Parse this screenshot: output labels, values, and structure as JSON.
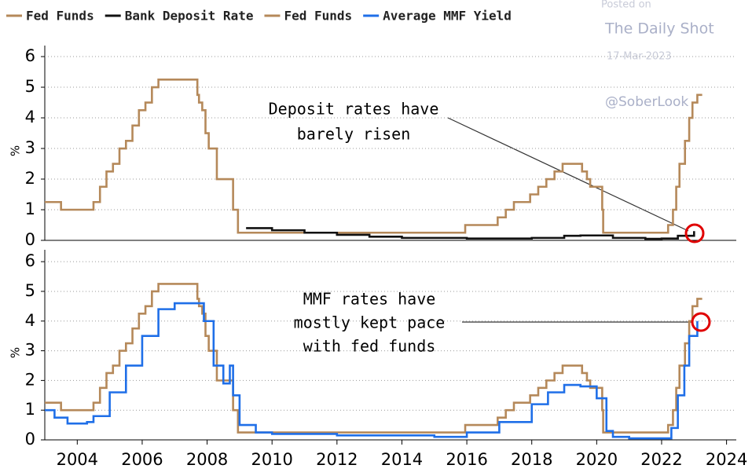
{
  "watermark": [
    "Posted on",
    "The Daily Shot",
    "17-Mar-2023",
    "@SoberLook"
  ],
  "chart_data": [
    {
      "type": "line",
      "ylabel": "%",
      "step": true,
      "annotation": [
        "Deposit rates have",
        "barely risen"
      ],
      "xlim": [
        2003,
        2024.3
      ],
      "ylim": [
        0,
        6.36
      ],
      "yticks": [
        0,
        1,
        2,
        3,
        4,
        5,
        6
      ],
      "grid": true,
      "series": [
        {
          "name": "Fed Funds",
          "color": "#b5895a",
          "x": [
            2003.0,
            2003.5,
            2004.5,
            2004.7,
            2004.9,
            2005.1,
            2005.3,
            2005.5,
            2005.7,
            2005.9,
            2006.1,
            2006.3,
            2006.5,
            2007.7,
            2007.75,
            2007.85,
            2007.95,
            2008.05,
            2008.3,
            2008.8,
            2008.95,
            2015.95,
            2016.95,
            2017.2,
            2017.45,
            2017.95,
            2018.2,
            2018.45,
            2018.7,
            2018.95,
            2019.55,
            2019.7,
            2019.8,
            2020.17,
            2020.2,
            2022.2,
            2022.35,
            2022.45,
            2022.55,
            2022.72,
            2022.85,
            2022.95,
            2023.1,
            2023.25
          ],
          "values": [
            1.25,
            1.0,
            1.25,
            1.75,
            2.25,
            2.5,
            3.0,
            3.25,
            3.75,
            4.25,
            4.5,
            5.0,
            5.25,
            4.75,
            4.5,
            4.25,
            3.5,
            3.0,
            2.0,
            1.0,
            0.25,
            0.5,
            0.75,
            1.0,
            1.25,
            1.5,
            1.75,
            2.0,
            2.25,
            2.5,
            2.25,
            2.0,
            1.75,
            1.0,
            0.25,
            0.5,
            1.0,
            1.75,
            2.5,
            3.25,
            4.0,
            4.5,
            4.75,
            4.75
          ]
        },
        {
          "name": "Bank Deposit Rate",
          "color": "#111111",
          "x": [
            2009.2,
            2010,
            2011,
            2012,
            2013,
            2014,
            2016,
            2018,
            2019,
            2019.5,
            2020.5,
            2021.5,
            2022,
            2022.5,
            2023.0
          ],
          "values": [
            0.4,
            0.33,
            0.25,
            0.18,
            0.12,
            0.08,
            0.06,
            0.08,
            0.15,
            0.16,
            0.08,
            0.05,
            0.06,
            0.15,
            0.3
          ]
        }
      ]
    },
    {
      "type": "line",
      "ylabel": "%",
      "step": true,
      "annotation": [
        "MMF rates have",
        "mostly kept pace",
        "with fed funds"
      ],
      "xlim": [
        2003,
        2024.3
      ],
      "ylim": [
        0,
        6.4
      ],
      "yticks": [
        0,
        1,
        2,
        3,
        4,
        5,
        6
      ],
      "grid": true,
      "xticks": [
        2004,
        2006,
        2008,
        2010,
        2012,
        2014,
        2016,
        2018,
        2020,
        2022,
        2024
      ],
      "series": [
        {
          "name": "Fed Funds",
          "color": "#b5895a",
          "x": [
            2003.0,
            2003.5,
            2004.5,
            2004.7,
            2004.9,
            2005.1,
            2005.3,
            2005.5,
            2005.7,
            2005.9,
            2006.1,
            2006.3,
            2006.5,
            2007.7,
            2007.75,
            2007.85,
            2007.95,
            2008.05,
            2008.3,
            2008.8,
            2008.95,
            2015.95,
            2016.95,
            2017.2,
            2017.45,
            2017.95,
            2018.2,
            2018.45,
            2018.7,
            2018.95,
            2019.55,
            2019.7,
            2019.8,
            2020.17,
            2020.2,
            2022.2,
            2022.35,
            2022.45,
            2022.55,
            2022.72,
            2022.85,
            2022.95,
            2023.1,
            2023.25
          ],
          "values": [
            1.25,
            1.0,
            1.25,
            1.75,
            2.25,
            2.5,
            3.0,
            3.25,
            3.75,
            4.25,
            4.5,
            5.0,
            5.25,
            4.75,
            4.5,
            4.25,
            3.5,
            3.0,
            2.0,
            1.0,
            0.25,
            0.5,
            0.75,
            1.0,
            1.25,
            1.5,
            1.75,
            2.0,
            2.25,
            2.5,
            2.25,
            2.0,
            1.75,
            1.0,
            0.25,
            0.5,
            1.0,
            1.75,
            2.5,
            3.25,
            4.0,
            4.5,
            4.75,
            4.75
          ]
        },
        {
          "name": "Average MMF Yield",
          "color": "#1f6fe8",
          "x": [
            2003.0,
            2003.3,
            2003.7,
            2004.3,
            2004.5,
            2005.0,
            2005.5,
            2006.0,
            2006.5,
            2007.0,
            2007.7,
            2007.9,
            2008.2,
            2008.5,
            2008.7,
            2008.8,
            2009.0,
            2009.5,
            2010,
            2012,
            2015,
            2016,
            2017,
            2018,
            2018.5,
            2019,
            2019.5,
            2020,
            2020.3,
            2020.5,
            2021,
            2022,
            2022.3,
            2022.5,
            2022.7,
            2022.85,
            2023.1
          ],
          "values": [
            1.0,
            0.75,
            0.55,
            0.6,
            0.8,
            1.6,
            2.5,
            3.5,
            4.4,
            4.6,
            4.6,
            4.0,
            2.5,
            1.9,
            2.5,
            1.5,
            0.5,
            0.25,
            0.2,
            0.15,
            0.1,
            0.25,
            0.6,
            1.2,
            1.6,
            1.85,
            1.8,
            1.4,
            0.3,
            0.1,
            0.05,
            0.05,
            0.4,
            1.5,
            2.5,
            3.5,
            4.0
          ]
        }
      ]
    }
  ]
}
